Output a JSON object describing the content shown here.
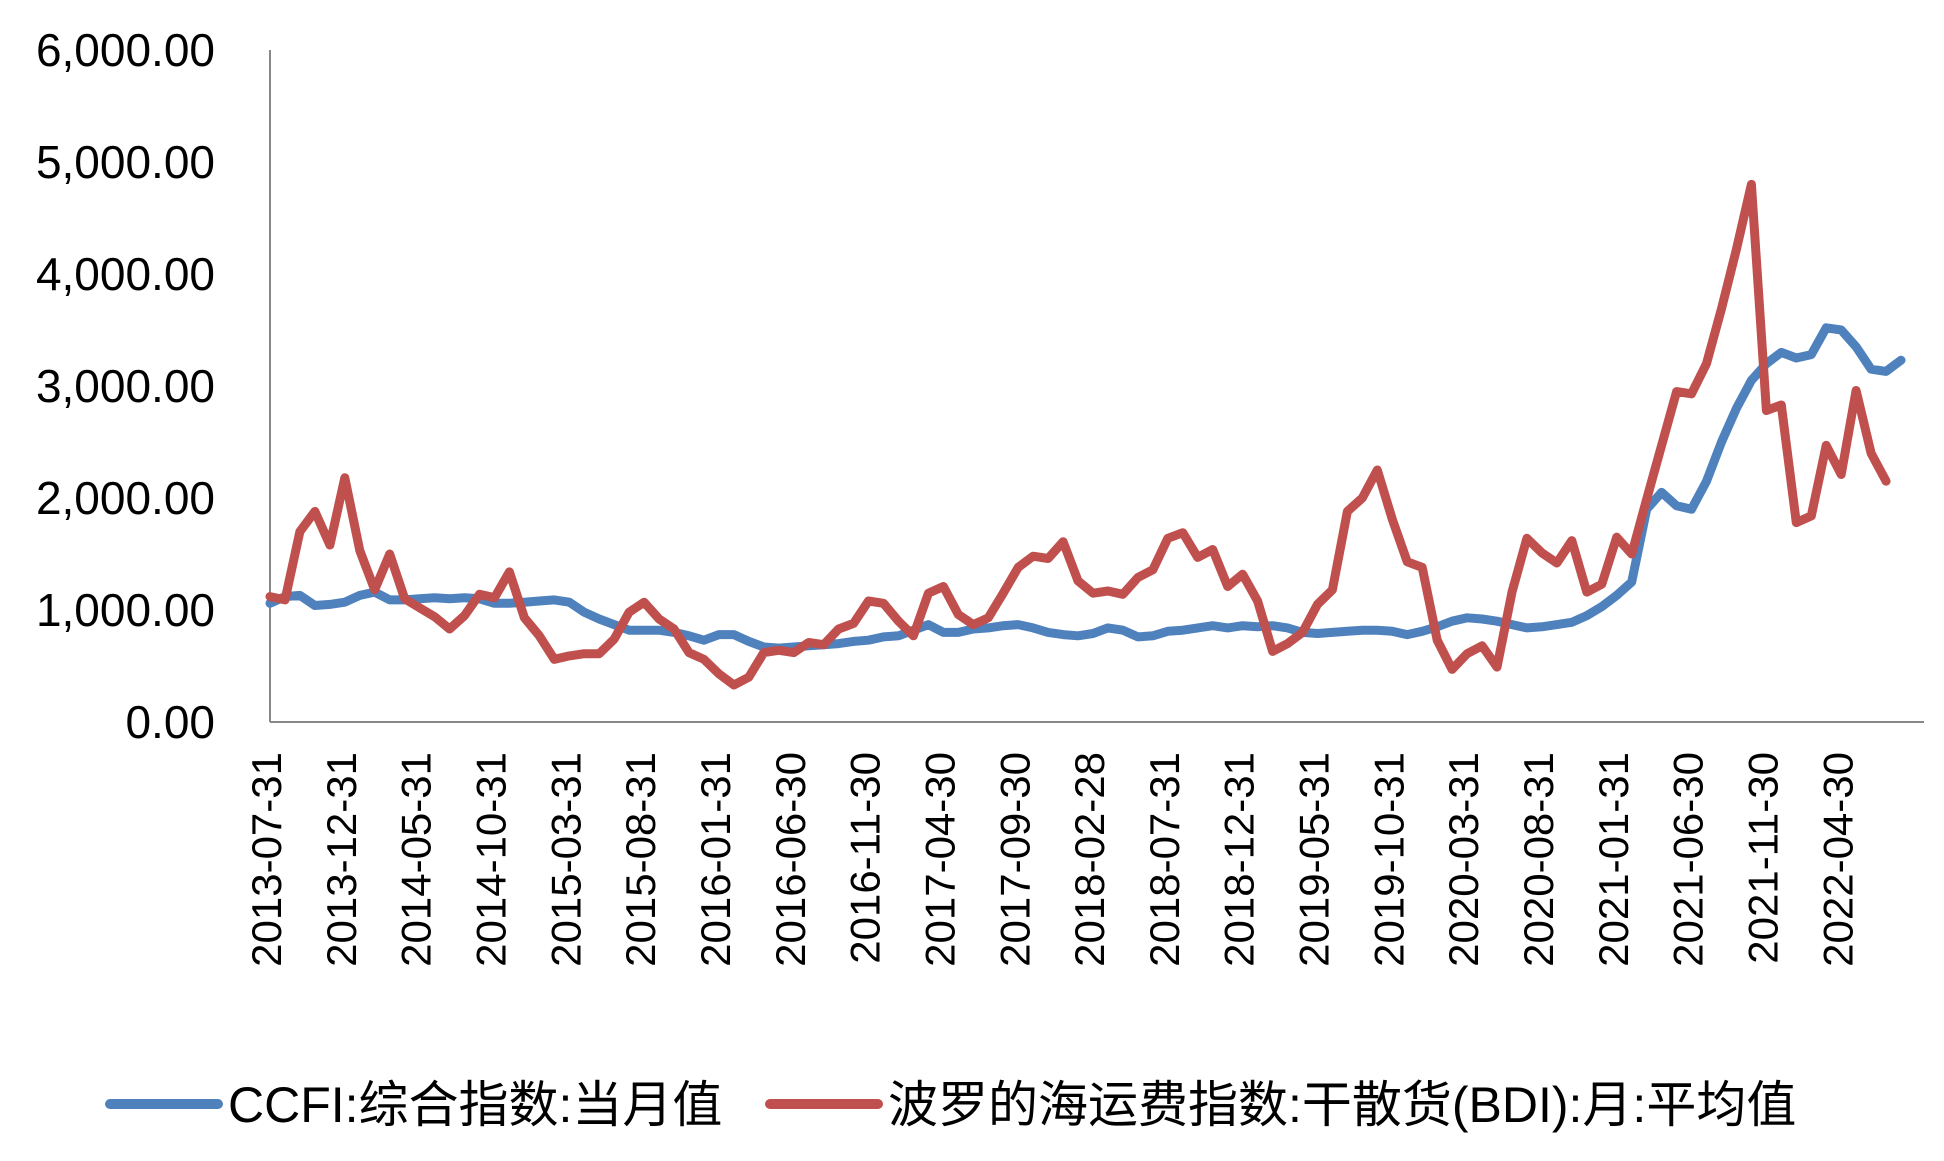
{
  "chart_data": {
    "type": "line",
    "title": "",
    "xlabel": "",
    "ylabel": "",
    "ylim": [
      0,
      6000
    ],
    "yticks": [
      "0.00",
      "1,000.00",
      "2,000.00",
      "3,000.00",
      "4,000.00",
      "5,000.00",
      "6,000.00"
    ],
    "xtick_labels": [
      "2013-07-31",
      "2013-12-31",
      "2014-05-31",
      "2014-10-31",
      "2015-03-31",
      "2015-08-31",
      "2016-01-31",
      "2016-06-30",
      "2016-11-30",
      "2017-04-30",
      "2017-09-30",
      "2018-02-28",
      "2018-07-31",
      "2018-12-31",
      "2019-05-31",
      "2019-10-31",
      "2020-03-31",
      "2020-08-31",
      "2021-01-31",
      "2021-06-30",
      "2021-11-30",
      "2022-04-30"
    ],
    "x_start": "2013-07-31",
    "x_end": "2022-09-30",
    "grid": false,
    "legend_position": "bottom",
    "series": [
      {
        "name": "CCFI:综合指数:当月值",
        "color": "#4F81BD",
        "values": [
          1060,
          1120,
          1130,
          1040,
          1050,
          1070,
          1130,
          1160,
          1090,
          1090,
          1100,
          1110,
          1100,
          1110,
          1100,
          1060,
          1060,
          1070,
          1080,
          1090,
          1070,
          980,
          920,
          870,
          820,
          820,
          820,
          800,
          770,
          730,
          780,
          780,
          720,
          670,
          660,
          670,
          680,
          690,
          700,
          720,
          730,
          760,
          770,
          820,
          870,
          800,
          800,
          830,
          840,
          860,
          870,
          840,
          800,
          780,
          770,
          790,
          840,
          820,
          760,
          770,
          810,
          820,
          840,
          860,
          840,
          860,
          850,
          860,
          840,
          800,
          790,
          800,
          810,
          820,
          820,
          810,
          780,
          810,
          850,
          900,
          930,
          920,
          900,
          870,
          840,
          850,
          870,
          890,
          950,
          1030,
          1130,
          1250,
          1900,
          2050,
          1930,
          1900,
          2150,
          2500,
          2800,
          3050,
          3200,
          3300,
          3250,
          3280,
          3520,
          3500,
          3350,
          3150,
          3130,
          3230
        ]
      },
      {
        "name": "波罗的海运费指数:干散货(BDI):月:平均值",
        "color": "#C0504D",
        "values": [
          1120,
          1090,
          1700,
          1880,
          1580,
          2180,
          1530,
          1180,
          1500,
          1100,
          1020,
          940,
          830,
          950,
          1140,
          1110,
          1340,
          930,
          770,
          560,
          590,
          610,
          610,
          740,
          980,
          1070,
          920,
          830,
          620,
          560,
          430,
          330,
          400,
          620,
          640,
          620,
          710,
          690,
          830,
          880,
          1080,
          1060,
          900,
          770,
          1150,
          1210,
          960,
          870,
          930,
          1150,
          1380,
          1480,
          1460,
          1610,
          1260,
          1150,
          1170,
          1140,
          1290,
          1360,
          1640,
          1690,
          1470,
          1540,
          1210,
          1320,
          1080,
          630,
          700,
          800,
          1050,
          1180,
          1880,
          2000,
          2250,
          1810,
          1430,
          1380,
          730,
          470,
          610,
          680,
          490,
          1160,
          1640,
          1510,
          1420,
          1620,
          1160,
          1230,
          1650,
          1500,
          1990,
          2470,
          2950,
          2930,
          3200,
          3690,
          4220,
          4800,
          2780,
          2830,
          1780,
          1840,
          2470,
          2210,
          2960,
          2400,
          2150
        ]
      }
    ]
  }
}
